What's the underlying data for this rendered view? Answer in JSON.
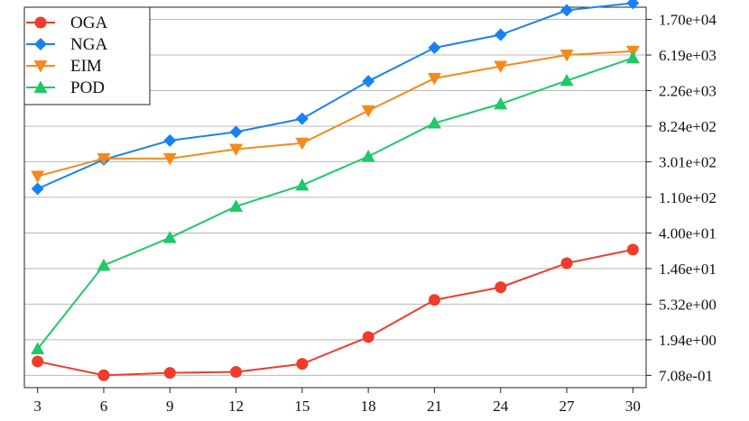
{
  "chart_data": {
    "type": "line",
    "title": "",
    "xlabel": "",
    "ylabel": "",
    "x": [
      3,
      6,
      9,
      12,
      15,
      18,
      21,
      24,
      27,
      30
    ],
    "x_tick_labels": [
      "3",
      "6",
      "9",
      "12",
      "15",
      "18",
      "21",
      "24",
      "27",
      "30"
    ],
    "xlim": [
      2.4,
      30.6
    ],
    "y_scale": "log",
    "ylim": [
      0.5,
      24000
    ],
    "y_axis_side": "right",
    "y_ticks": [
      0.708,
      1.94,
      5.32,
      14.6,
      40.0,
      110,
      301,
      824,
      2260,
      6190,
      17000
    ],
    "y_tick_labels": [
      "7.08e-01",
      "1.94e+00",
      "5.32e+00",
      "1.46e+01",
      "4.00e+01",
      "1.10e+02",
      "3.01e+02",
      "8.24e+02",
      "2.26e+03",
      "6.19e+03",
      "1.70e+04"
    ],
    "grid": "horizontal",
    "legend": "top-left",
    "series": [
      {
        "name": "OGA",
        "color": "#f03c2c",
        "marker": "circle",
        "values": [
          1.05,
          0.71,
          0.76,
          0.78,
          0.98,
          2.1,
          6.0,
          8.6,
          17.0,
          25.0
        ]
      },
      {
        "name": "NGA",
        "color": "#1a82f0",
        "marker": "diamond",
        "values": [
          140,
          320,
          550,
          700,
          1020,
          2950,
          7600,
          11000,
          22000,
          27000
        ]
      },
      {
        "name": "EIM",
        "color": "#f48a1c",
        "marker": "triangle-down",
        "values": [
          200,
          330,
          330,
          430,
          510,
          1280,
          3200,
          4500,
          6200,
          6900
        ]
      },
      {
        "name": "POD",
        "color": "#1fc868",
        "marker": "triangle-up",
        "values": [
          1.5,
          16.0,
          35.0,
          85.0,
          155.0,
          350.0,
          900.0,
          1550.0,
          3000.0,
          5700.0
        ]
      }
    ]
  }
}
